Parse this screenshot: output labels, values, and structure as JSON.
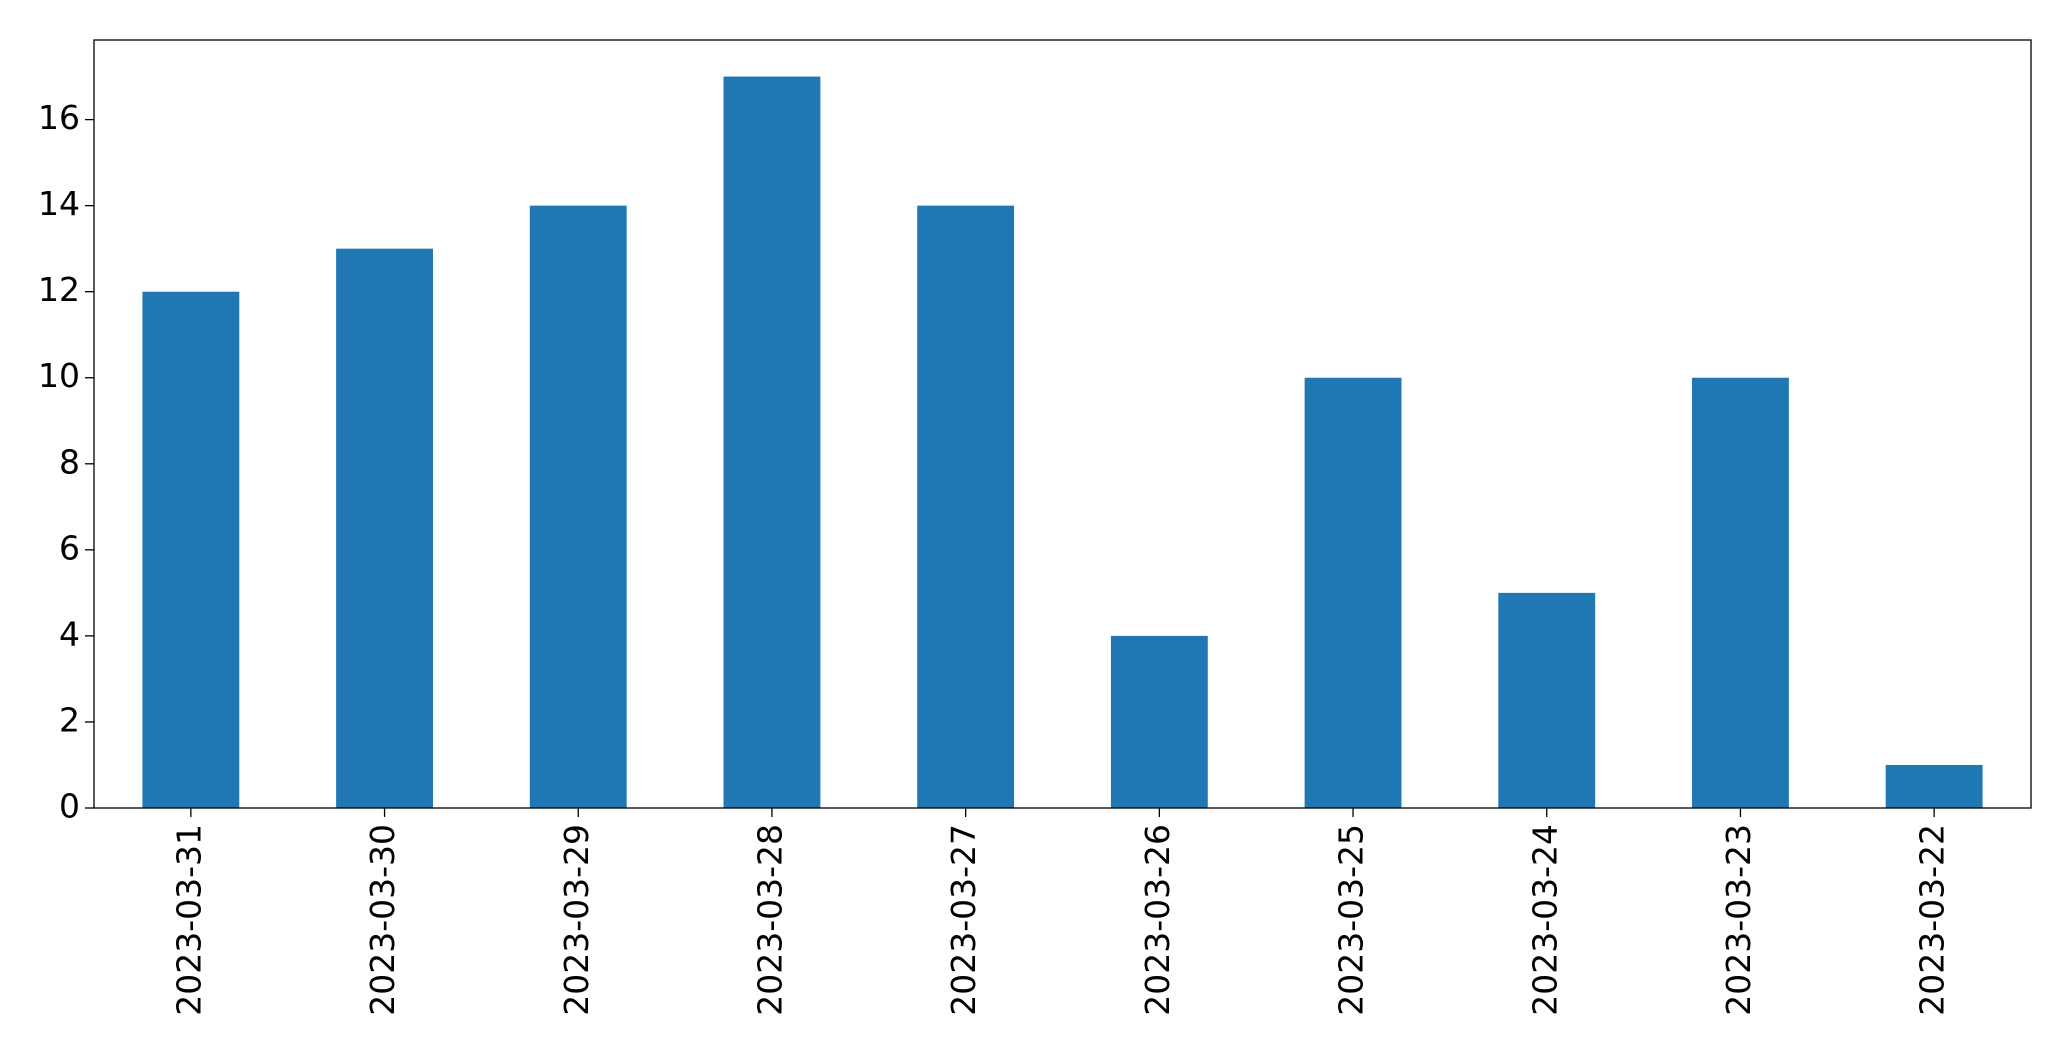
{
  "chart_data": {
    "type": "bar",
    "categories": [
      "2023-03-31",
      "2023-03-30",
      "2023-03-29",
      "2023-03-28",
      "2023-03-27",
      "2023-03-26",
      "2023-03-25",
      "2023-03-24",
      "2023-03-23",
      "2023-03-22"
    ],
    "values": [
      12,
      13,
      14,
      17,
      14,
      4,
      10,
      5,
      10,
      1
    ],
    "color": "#1f77b4",
    "ylim": [
      0,
      17.85
    ],
    "yticks": [
      0,
      2,
      4,
      6,
      8,
      10,
      12,
      14,
      16
    ],
    "grid": false
  }
}
